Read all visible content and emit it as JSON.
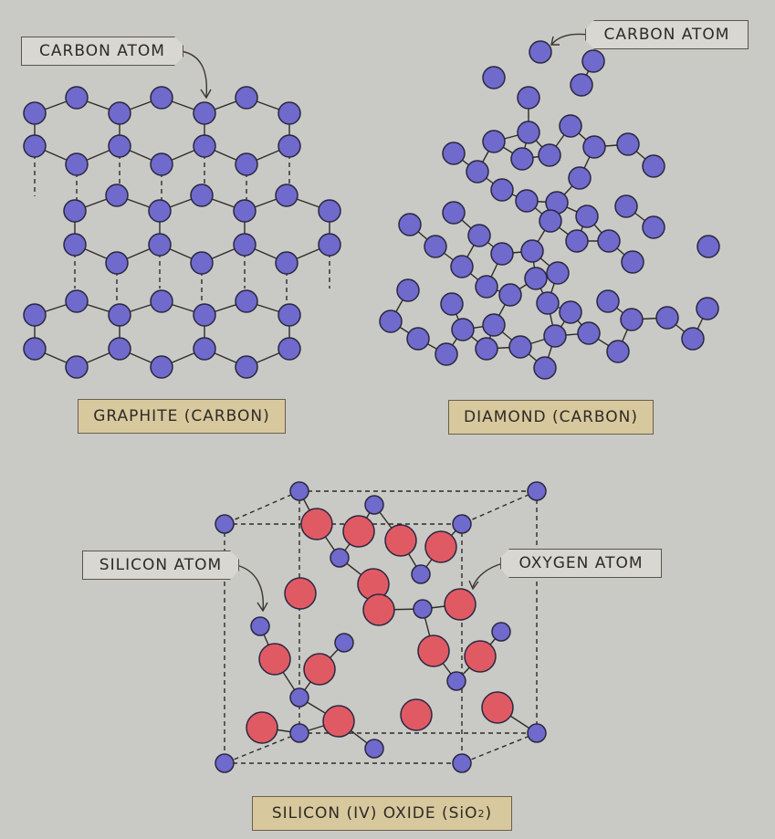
{
  "colors": {
    "carbon": "#6f6acb",
    "silicon": "#6f6acb",
    "oxygen": "#e05a64",
    "title_box": "#d8c89e",
    "callout_box": "#d8d7d1"
  },
  "graphite": {
    "callout": "CARBON ATOM",
    "title": "GRAPHITE (CARBON)"
  },
  "diamond": {
    "callout": "CARBON ATOM",
    "title": "DIAMOND (CARBON)"
  },
  "silica": {
    "callout_silicon": "SILICON ATOM",
    "callout_oxygen": "OXYGEN ATOM",
    "title": "SILICON (IV) OXIDE (SiO",
    "title_sub": "2",
    "title_end": ")"
  }
}
